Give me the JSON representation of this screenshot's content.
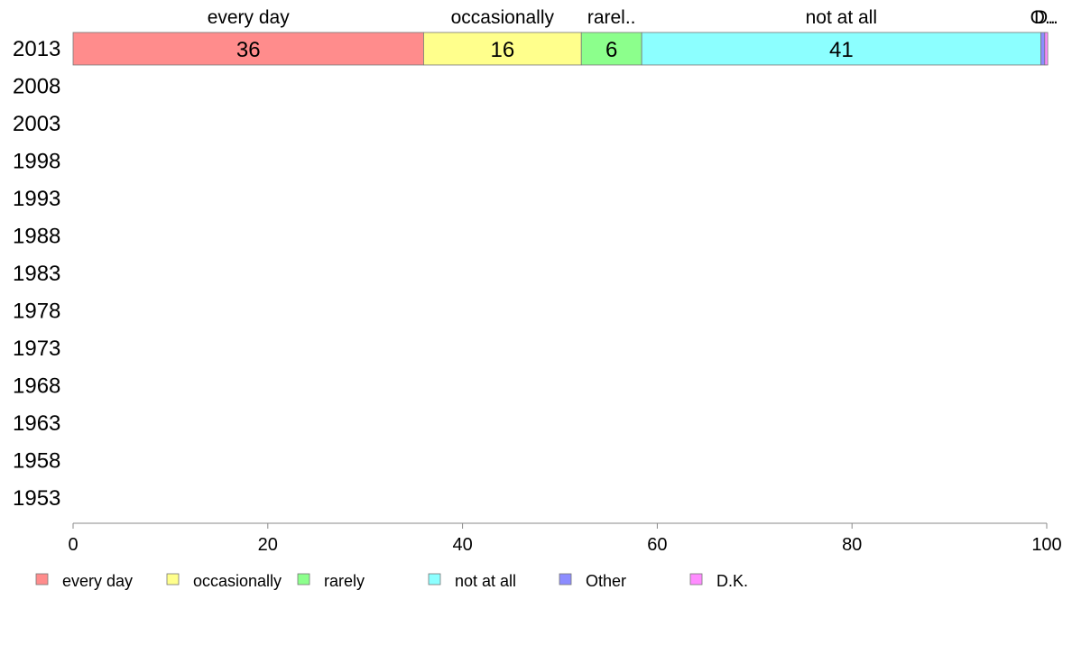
{
  "chart_data": {
    "type": "bar",
    "orientation": "horizontal",
    "stacked": true,
    "categories": [
      "2013",
      "2008",
      "2003",
      "1998",
      "1993",
      "1988",
      "1983",
      "1978",
      "1973",
      "1968",
      "1963",
      "1958",
      "1953"
    ],
    "series": [
      {
        "name": "every day",
        "color": "#ff8c8c",
        "values": [
          36,
          null,
          null,
          null,
          null,
          null,
          null,
          null,
          null,
          null,
          null,
          null,
          null
        ]
      },
      {
        "name": "occasionally",
        "color": "#ffff8c",
        "values": [
          16.2,
          null,
          null,
          null,
          null,
          null,
          null,
          null,
          null,
          null,
          null,
          null,
          null
        ]
      },
      {
        "name": "rarely",
        "color": "#8cff8c",
        "values": [
          6.2,
          null,
          null,
          null,
          null,
          null,
          null,
          null,
          null,
          null,
          null,
          null,
          null
        ]
      },
      {
        "name": "not at all",
        "color": "#8cffff",
        "values": [
          41,
          null,
          null,
          null,
          null,
          null,
          null,
          null,
          null,
          null,
          null,
          null,
          null
        ]
      },
      {
        "name": "Other",
        "color": "#8c8cff",
        "values": [
          0.4,
          null,
          null,
          null,
          null,
          null,
          null,
          null,
          null,
          null,
          null,
          null,
          null
        ]
      },
      {
        "name": "D.K.",
        "color": "#ff8cff",
        "values": [
          0.3,
          null,
          null,
          null,
          null,
          null,
          null,
          null,
          null,
          null,
          null,
          null,
          null
        ]
      }
    ],
    "data_labels": [
      "36",
      "16",
      "6",
      "41",
      "",
      ""
    ],
    "top_labels": [
      "every day",
      "occasionally",
      "rarel..",
      "not at all",
      "O..",
      "D.."
    ],
    "xlim": [
      0,
      100
    ],
    "xticks": [
      0,
      20,
      40,
      60,
      80,
      100
    ],
    "title": "",
    "xlabel": "",
    "ylabel": "",
    "grid": false,
    "legend_position": "bottom"
  }
}
